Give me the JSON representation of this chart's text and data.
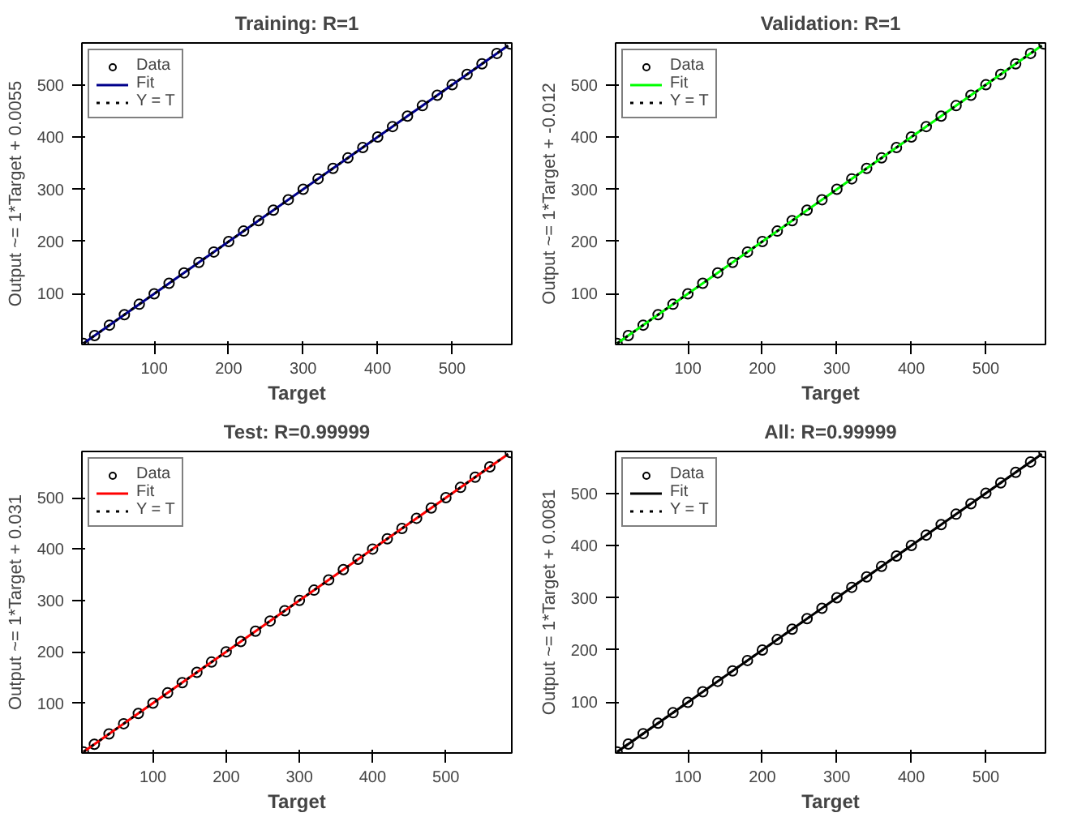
{
  "chart_data": [
    {
      "type": "scatter",
      "title": "Training: R=1",
      "xlabel": "Target",
      "ylabel": "Output ~= 1*Target + 0.0055",
      "xlim": [
        3,
        580
      ],
      "ylim": [
        3,
        580
      ],
      "xticks": [
        100,
        200,
        300,
        400,
        500
      ],
      "yticks": [
        100,
        200,
        300,
        400,
        500
      ],
      "grid": false,
      "legend": "top left",
      "series": [
        {
          "name": "Data",
          "marker": "circle",
          "color": "#000000",
          "x": [
            5,
            20,
            40,
            60,
            80,
            100,
            120,
            140,
            160,
            180,
            200,
            220,
            240,
            260,
            280,
            300,
            320,
            340,
            360,
            380,
            400,
            420,
            440,
            460,
            480,
            500,
            520,
            540,
            560,
            578
          ],
          "values": [
            5,
            20,
            40,
            60,
            80,
            100,
            120,
            140,
            160,
            180,
            200,
            220,
            240,
            260,
            280,
            300,
            320,
            340,
            360,
            380,
            400,
            420,
            440,
            460,
            480,
            500,
            520,
            540,
            560,
            578
          ]
        },
        {
          "name": "Fit",
          "type": "line",
          "color": "#00008b",
          "x": [
            5,
            575
          ],
          "values": [
            5,
            575
          ]
        },
        {
          "name": "Y = T",
          "type": "line",
          "line_style": "dotted",
          "color": "#000000",
          "x": [
            5,
            575
          ],
          "values": [
            5,
            575
          ]
        }
      ]
    },
    {
      "type": "scatter",
      "title": "Validation: R=1",
      "xlabel": "Target",
      "ylabel": "Output ~= 1*Target + -0.012",
      "xlim": [
        3,
        580
      ],
      "ylim": [
        3,
        580
      ],
      "xticks": [
        100,
        200,
        300,
        400,
        500
      ],
      "yticks": [
        100,
        200,
        300,
        400,
        500
      ],
      "grid": false,
      "legend": "top left",
      "series": [
        {
          "name": "Data",
          "marker": "circle",
          "color": "#000000",
          "x": [
            5,
            20,
            40,
            60,
            80,
            100,
            120,
            140,
            160,
            180,
            200,
            220,
            240,
            260,
            280,
            300,
            320,
            340,
            360,
            380,
            400,
            420,
            440,
            460,
            480,
            500,
            520,
            540,
            560,
            578
          ],
          "values": [
            5,
            20,
            40,
            60,
            80,
            100,
            120,
            140,
            160,
            180,
            200,
            220,
            240,
            260,
            280,
            300,
            320,
            340,
            360,
            380,
            400,
            420,
            440,
            460,
            480,
            500,
            520,
            540,
            560,
            578
          ]
        },
        {
          "name": "Fit",
          "type": "line",
          "color": "#00ff00",
          "x": [
            5,
            575
          ],
          "values": [
            5,
            575
          ]
        },
        {
          "name": "Y = T",
          "type": "line",
          "line_style": "dotted",
          "color": "#000000",
          "x": [
            5,
            575
          ],
          "values": [
            5,
            575
          ]
        }
      ]
    },
    {
      "type": "scatter",
      "title": "Test: R=0.99999",
      "xlabel": "Target",
      "ylabel": "Output ~= 1*Target + 0.031",
      "xlim": [
        3,
        590
      ],
      "ylim": [
        3,
        590
      ],
      "xticks": [
        100,
        200,
        300,
        400,
        500
      ],
      "yticks": [
        100,
        200,
        300,
        400,
        500
      ],
      "grid": false,
      "legend": "top left",
      "series": [
        {
          "name": "Data",
          "marker": "circle",
          "color": "#000000",
          "x": [
            5,
            20,
            40,
            60,
            80,
            100,
            120,
            140,
            160,
            180,
            200,
            220,
            240,
            260,
            280,
            300,
            320,
            340,
            360,
            380,
            400,
            420,
            440,
            460,
            480,
            500,
            520,
            540,
            560,
            588
          ],
          "values": [
            5,
            20,
            40,
            60,
            80,
            100,
            120,
            140,
            160,
            180,
            200,
            220,
            240,
            260,
            280,
            300,
            320,
            340,
            360,
            380,
            400,
            420,
            440,
            460,
            480,
            500,
            520,
            540,
            560,
            588
          ]
        },
        {
          "name": "Fit",
          "type": "line",
          "color": "#ff0000",
          "x": [
            5,
            585
          ],
          "values": [
            5,
            585
          ]
        },
        {
          "name": "Y = T",
          "type": "line",
          "line_style": "dotted",
          "color": "#000000",
          "x": [
            5,
            585
          ],
          "values": [
            5,
            585
          ]
        }
      ]
    },
    {
      "type": "scatter",
      "title": "All: R=0.99999",
      "xlabel": "Target",
      "ylabel": "Output ~= 1*Target + 0.0081",
      "xlim": [
        3,
        580
      ],
      "ylim": [
        3,
        580
      ],
      "xticks": [
        100,
        200,
        300,
        400,
        500
      ],
      "yticks": [
        100,
        200,
        300,
        400,
        500
      ],
      "grid": false,
      "legend": "top left",
      "series": [
        {
          "name": "Data",
          "marker": "circle",
          "color": "#000000",
          "x": [
            5,
            20,
            40,
            60,
            80,
            100,
            120,
            140,
            160,
            180,
            200,
            220,
            240,
            260,
            280,
            300,
            320,
            340,
            360,
            380,
            400,
            420,
            440,
            460,
            480,
            500,
            520,
            540,
            560,
            578
          ],
          "values": [
            5,
            20,
            40,
            60,
            80,
            100,
            120,
            140,
            160,
            180,
            200,
            220,
            240,
            260,
            280,
            300,
            320,
            340,
            360,
            380,
            400,
            420,
            440,
            460,
            480,
            500,
            520,
            540,
            560,
            578
          ]
        },
        {
          "name": "Fit",
          "type": "line",
          "color": "#000000",
          "x": [
            5,
            575
          ],
          "values": [
            5,
            575
          ]
        },
        {
          "name": "Y = T",
          "type": "line",
          "line_style": "dotted",
          "color": "#000000",
          "x": [
            5,
            575
          ],
          "values": [
            5,
            575
          ]
        }
      ]
    }
  ]
}
